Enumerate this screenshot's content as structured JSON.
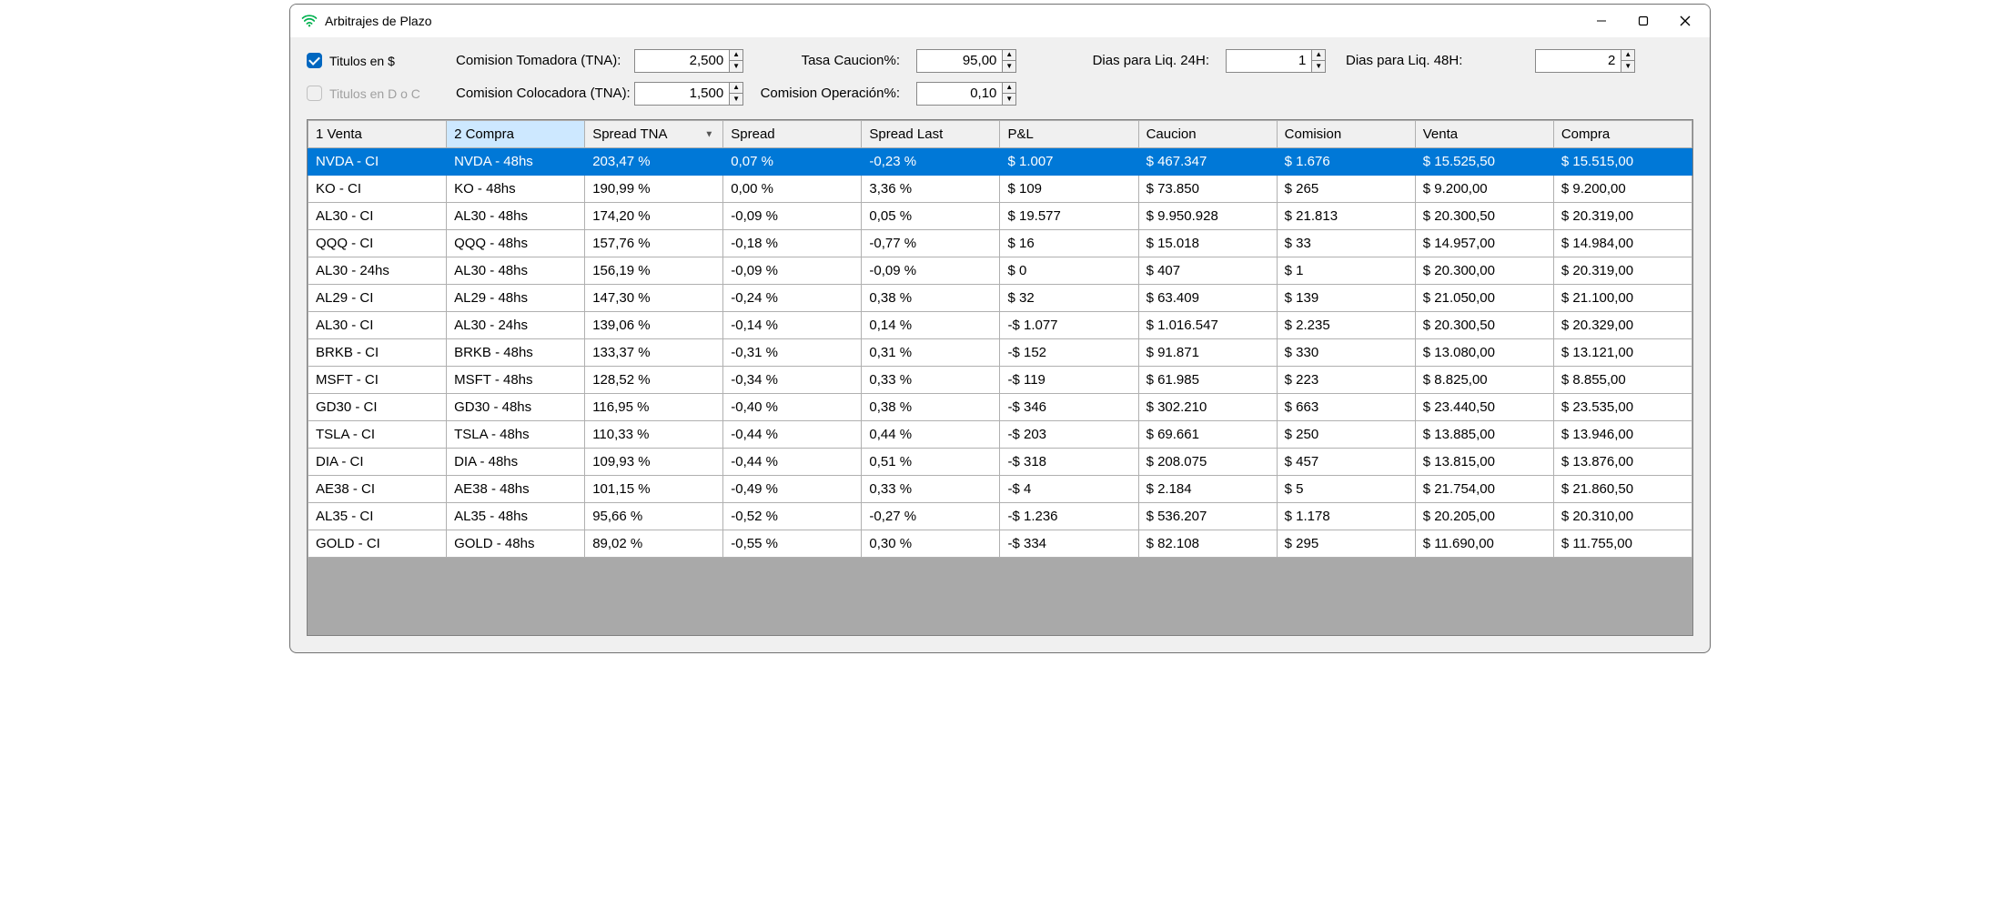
{
  "window": {
    "title": "Arbitrajes de Plazo",
    "icon_color": "#00b14f"
  },
  "toolbar": {
    "titulos_en_pesos": {
      "label": "Titulos en $",
      "checked": true
    },
    "titulos_en_doc": {
      "label": "Titulos en D o C",
      "checked": false,
      "disabled": true
    },
    "comision_tomadora": {
      "label": "Comision Tomadora (TNA):",
      "value": "2,500"
    },
    "comision_colocadora": {
      "label": "Comision Colocadora (TNA):",
      "value": "1,500"
    },
    "tasa_caucion": {
      "label": "Tasa Caucion%:",
      "value": "95,00"
    },
    "comision_operacion": {
      "label": "Comision Operación%:",
      "value": "0,10"
    },
    "dias_liq_24h": {
      "label": "Dias para Liq. 24H:",
      "value": "1"
    },
    "dias_liq_48h": {
      "label": "Dias para Liq. 48H:",
      "value": "2"
    }
  },
  "grid": {
    "columns": [
      "1 Venta",
      "2 Compra",
      "Spread TNA",
      "Spread",
      "Spread Last",
      "P&L",
      "Caucion",
      "Comision",
      "Venta",
      "Compra"
    ],
    "col_widths_pct": [
      10,
      10,
      10,
      10,
      10,
      10,
      10,
      10,
      10,
      10
    ],
    "sorted_column_index": 2,
    "sorted_direction_glyph": "▼",
    "active_header_index": 1,
    "selected_row_index": 0,
    "rows": [
      [
        "NVDA - CI",
        "NVDA - 48hs",
        "203,47 %",
        "0,07 %",
        "-0,23 %",
        "$ 1.007",
        "$ 467.347",
        "$ 1.676",
        "$ 15.525,50",
        "$ 15.515,00"
      ],
      [
        "KO - CI",
        "KO - 48hs",
        "190,99 %",
        "0,00 %",
        "3,36 %",
        "$ 109",
        "$ 73.850",
        "$ 265",
        "$ 9.200,00",
        "$ 9.200,00"
      ],
      [
        "AL30 - CI",
        "AL30 - 48hs",
        "174,20 %",
        "-0,09 %",
        "0,05 %",
        "$ 19.577",
        "$ 9.950.928",
        "$ 21.813",
        "$ 20.300,50",
        "$ 20.319,00"
      ],
      [
        "QQQ - CI",
        "QQQ - 48hs",
        "157,76 %",
        "-0,18 %",
        "-0,77 %",
        "$ 16",
        "$ 15.018",
        "$ 33",
        "$ 14.957,00",
        "$ 14.984,00"
      ],
      [
        "AL30 - 24hs",
        "AL30 - 48hs",
        "156,19 %",
        "-0,09 %",
        "-0,09 %",
        "$ 0",
        "$ 407",
        "$ 1",
        "$ 20.300,00",
        "$ 20.319,00"
      ],
      [
        "AL29 - CI",
        "AL29 - 48hs",
        "147,30 %",
        "-0,24 %",
        "0,38 %",
        "$ 32",
        "$ 63.409",
        "$ 139",
        "$ 21.050,00",
        "$ 21.100,00"
      ],
      [
        "AL30 - CI",
        "AL30 - 24hs",
        "139,06 %",
        "-0,14 %",
        "0,14 %",
        "-$ 1.077",
        "$ 1.016.547",
        "$ 2.235",
        "$ 20.300,50",
        "$ 20.329,00"
      ],
      [
        "BRKB - CI",
        "BRKB - 48hs",
        "133,37 %",
        "-0,31 %",
        "0,31 %",
        "-$ 152",
        "$ 91.871",
        "$ 330",
        "$ 13.080,00",
        "$ 13.121,00"
      ],
      [
        "MSFT - CI",
        "MSFT - 48hs",
        "128,52 %",
        "-0,34 %",
        "0,33 %",
        "-$ 119",
        "$ 61.985",
        "$ 223",
        "$ 8.825,00",
        "$ 8.855,00"
      ],
      [
        "GD30 - CI",
        "GD30 - 48hs",
        "116,95 %",
        "-0,40 %",
        "0,38 %",
        "-$ 346",
        "$ 302.210",
        "$ 663",
        "$ 23.440,50",
        "$ 23.535,00"
      ],
      [
        "TSLA - CI",
        "TSLA - 48hs",
        "110,33 %",
        "-0,44 %",
        "0,44 %",
        "-$ 203",
        "$ 69.661",
        "$ 250",
        "$ 13.885,00",
        "$ 13.946,00"
      ],
      [
        "DIA - CI",
        "DIA - 48hs",
        "109,93 %",
        "-0,44 %",
        "0,51 %",
        "-$ 318",
        "$ 208.075",
        "$ 457",
        "$ 13.815,00",
        "$ 13.876,00"
      ],
      [
        "AE38 - CI",
        "AE38 - 48hs",
        "101,15 %",
        "-0,49 %",
        "0,33 %",
        "-$ 4",
        "$ 2.184",
        "$ 5",
        "$ 21.754,00",
        "$ 21.860,50"
      ],
      [
        "AL35 - CI",
        "AL35 - 48hs",
        "95,66 %",
        "-0,52 %",
        "-0,27 %",
        "-$ 1.236",
        "$ 536.207",
        "$ 1.178",
        "$ 20.205,00",
        "$ 20.310,00"
      ],
      [
        "GOLD - CI",
        "GOLD - 48hs",
        "89,02 %",
        "-0,55 %",
        "0,30 %",
        "-$ 334",
        "$ 82.108",
        "$ 295",
        "$ 11.690,00",
        "$ 11.755,00"
      ]
    ]
  },
  "colors": {
    "selection_bg": "#0078d7",
    "selection_fg": "#ffffff",
    "header_active_bg": "#cde8ff",
    "grid_border": "#b0b0b0",
    "window_bg": "#f0f0f0"
  }
}
